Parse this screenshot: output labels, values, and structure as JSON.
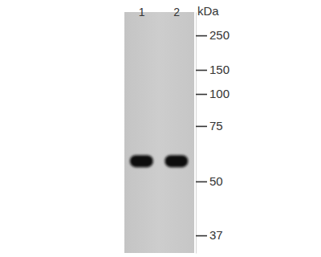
{
  "chart_data": {
    "type": "blot",
    "y_label": "kDa",
    "categories": [
      "1",
      "2"
    ],
    "values": [
      58,
      58
    ],
    "color": "#111111",
    "log": "y",
    "ylim": [
      34,
      350
    ],
    "yticks": [
      250,
      150,
      100,
      75,
      50,
      37
    ],
    "grid": false
  }
}
